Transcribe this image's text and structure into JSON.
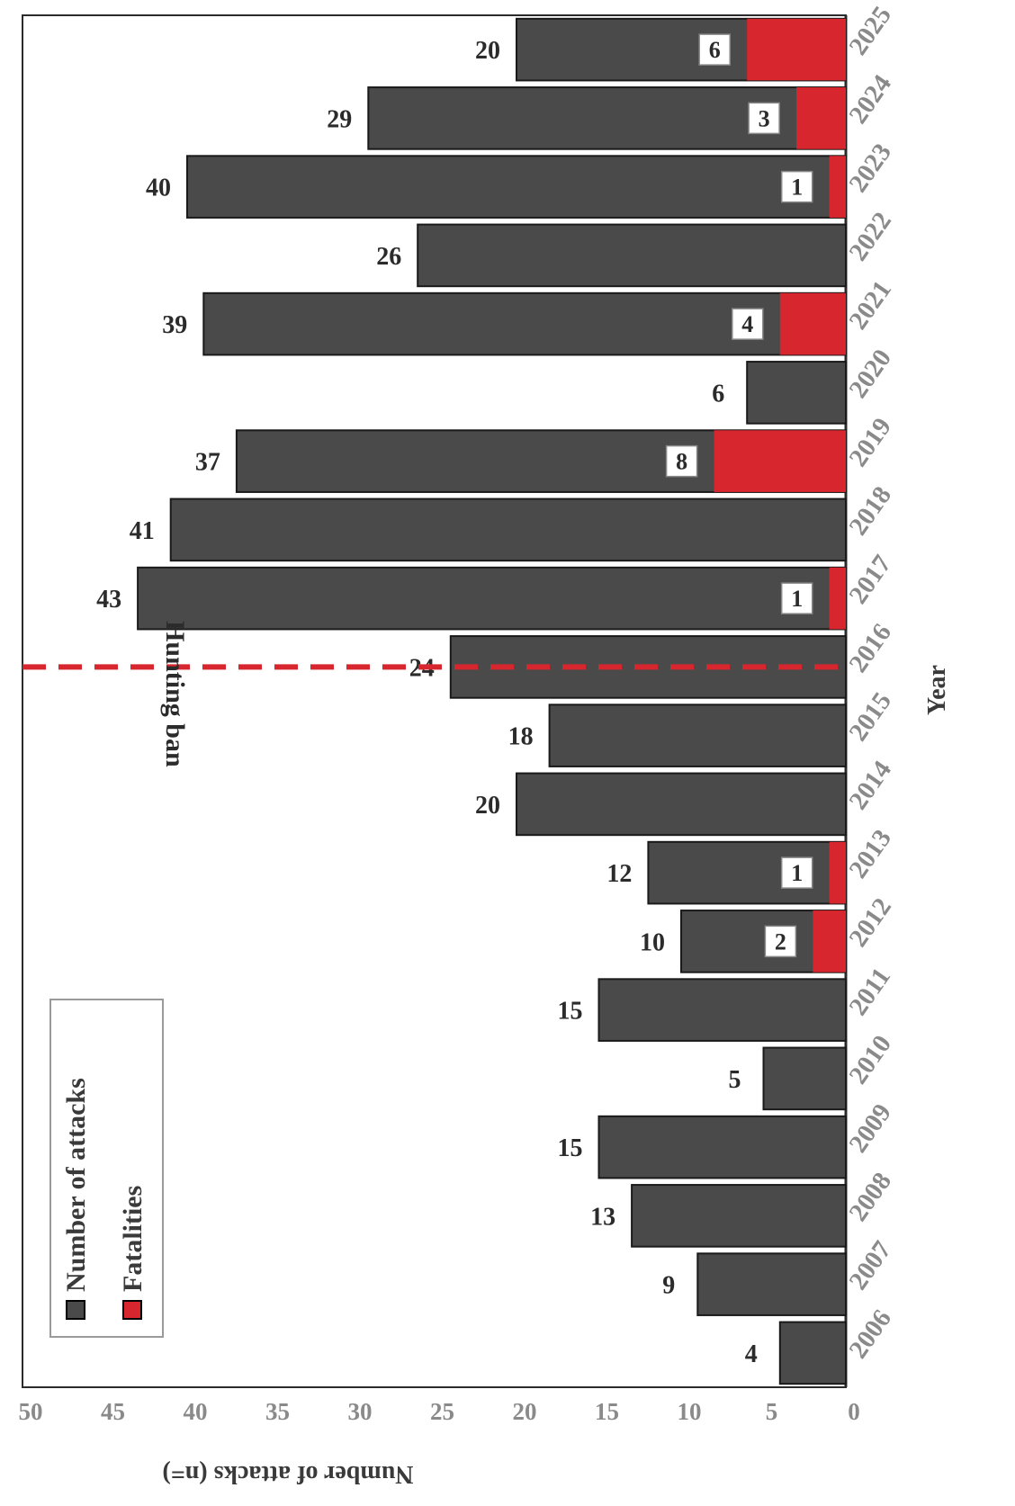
{
  "chart_data": {
    "type": "bar",
    "orientation": "rotated-90",
    "categories": [
      "2006",
      "2007",
      "2008",
      "2009",
      "2010",
      "2011",
      "2012",
      "2013",
      "2014",
      "2015",
      "2016",
      "2017",
      "2018",
      "2019",
      "2020",
      "2021",
      "2022",
      "2023",
      "2024",
      "2025"
    ],
    "series": [
      {
        "name": "Number of attacks",
        "color": "#4a4a4a",
        "values": [
          4,
          9,
          13,
          15,
          5,
          15,
          10,
          12,
          20,
          18,
          24,
          43,
          41,
          37,
          6,
          39,
          26,
          40,
          29,
          20
        ]
      },
      {
        "name": "Fatalities",
        "color": "#d7262e",
        "values": [
          0,
          0,
          0,
          0,
          0,
          0,
          2,
          1,
          0,
          0,
          0,
          1,
          0,
          8,
          0,
          4,
          0,
          1,
          3,
          6
        ]
      }
    ],
    "xlabel": "Year",
    "ylabel": "Number of attacks (n=)",
    "ylim": [
      0,
      50
    ],
    "yticks": [
      0,
      5,
      10,
      15,
      20,
      25,
      30,
      35,
      40,
      45,
      50
    ],
    "annotation": {
      "label": "Hunting ban",
      "position_year": "2016",
      "color": "#d7262e"
    },
    "legend": "top-left",
    "grid": false
  }
}
